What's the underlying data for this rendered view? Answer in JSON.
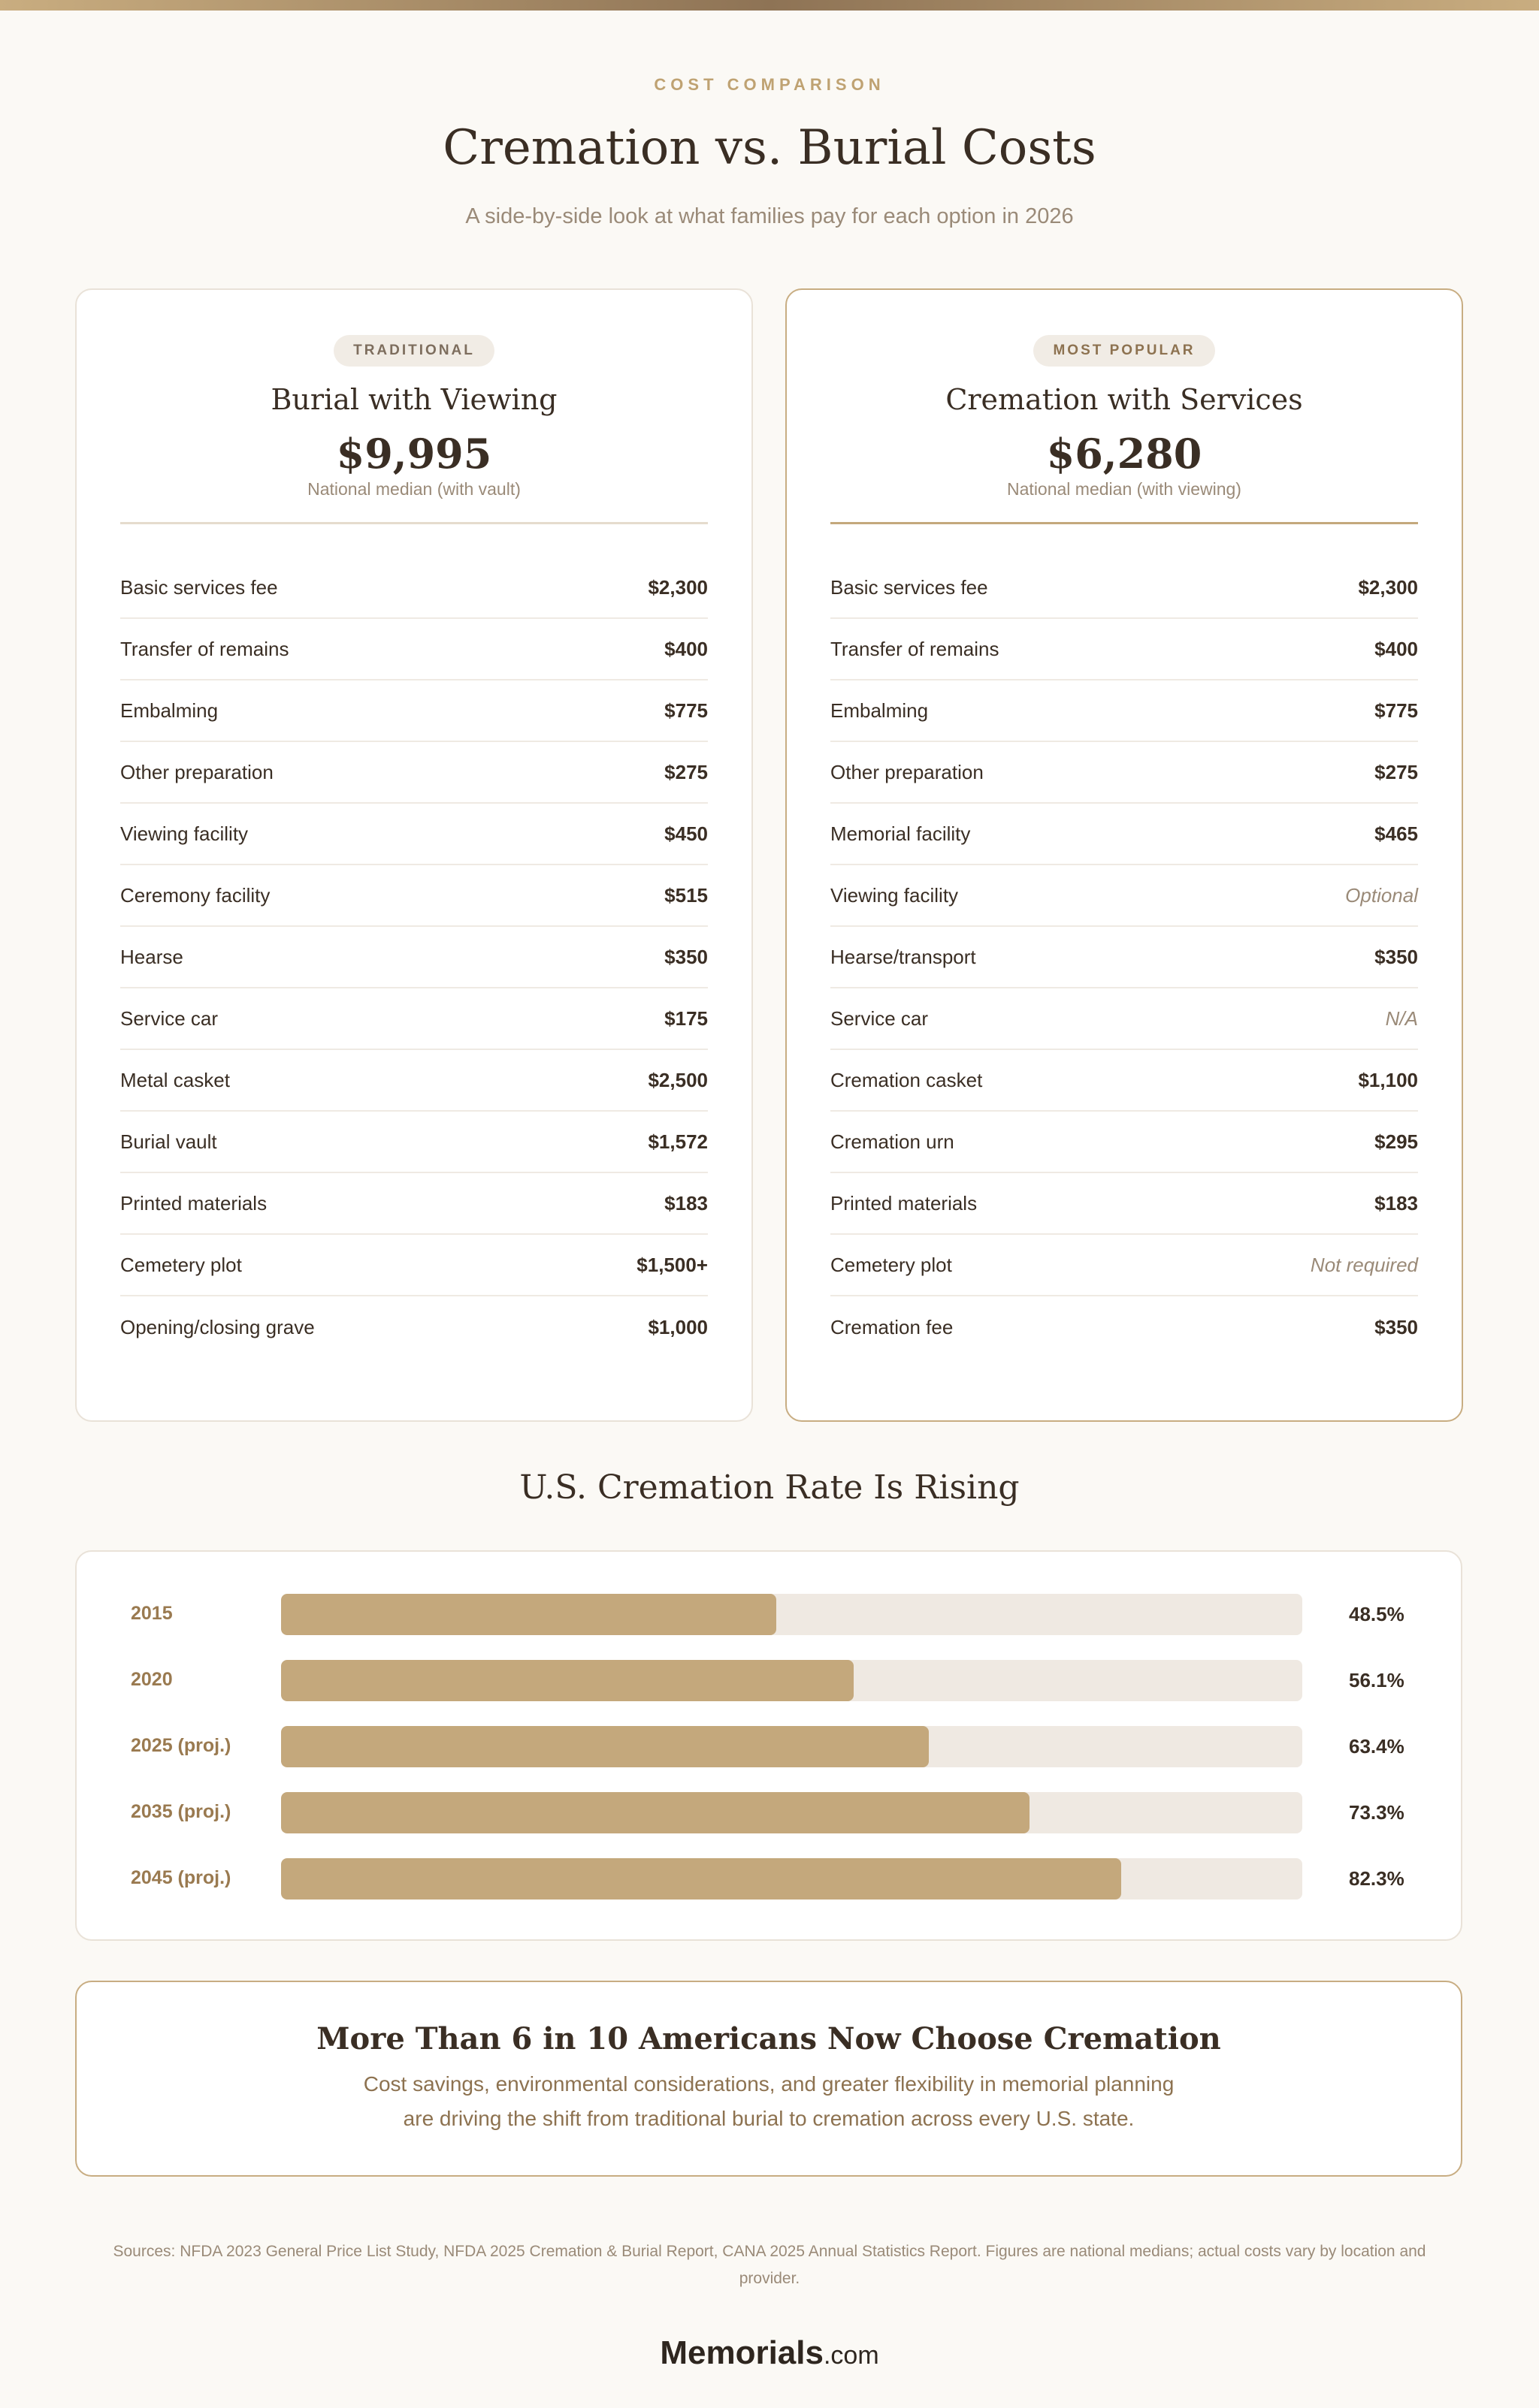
{
  "header": {
    "eyebrow": "COST COMPARISON",
    "title": "Cremation vs. Burial Costs",
    "subtitle": "A side-by-side look at what families pay for each option in 2026"
  },
  "cards": [
    {
      "badge": "TRADITIONAL",
      "title": "Burial with Viewing",
      "price": "$9,995",
      "note": "National median (with vault)",
      "rows": [
        [
          "Basic services fee",
          "$2,300"
        ],
        [
          "Transfer of remains",
          "$400"
        ],
        [
          "Embalming",
          "$775"
        ],
        [
          "Other preparation",
          "$275"
        ],
        [
          "Viewing facility",
          "$450"
        ],
        [
          "Ceremony facility",
          "$515"
        ],
        [
          "Hearse",
          "$350"
        ],
        [
          "Service car",
          "$175"
        ],
        [
          "Metal casket",
          "$2,500"
        ],
        [
          "Burial vault",
          "$1,572"
        ],
        [
          "Printed materials",
          "$183"
        ],
        [
          "Cemetery plot",
          "$1,500+"
        ],
        [
          "Opening/closing grave",
          "$1,000"
        ]
      ]
    },
    {
      "badge": "MOST POPULAR",
      "title": "Cremation with Services",
      "price": "$6,280",
      "note": "National median (with viewing)",
      "rows": [
        [
          "Basic services fee",
          "$2,300"
        ],
        [
          "Transfer of remains",
          "$400"
        ],
        [
          "Embalming",
          "$775"
        ],
        [
          "Other preparation",
          "$275"
        ],
        [
          "Memorial facility",
          "$465"
        ],
        [
          "Viewing facility",
          "Optional"
        ],
        [
          "Hearse/transport",
          "$350"
        ],
        [
          "Service car",
          "N/A"
        ],
        [
          "Cremation casket",
          "$1,100"
        ],
        [
          "Cremation urn",
          "$295"
        ],
        [
          "Printed materials",
          "$183"
        ],
        [
          "Cemetery plot",
          "Not required"
        ],
        [
          "Cremation fee",
          "$350"
        ]
      ]
    }
  ],
  "chart_data": {
    "type": "bar",
    "title": "U.S. Cremation Rate Is Rising",
    "categories": [
      "2015",
      "2020",
      "2025 (proj.)",
      "2035 (proj.)",
      "2045 (proj.)"
    ],
    "values": [
      48.5,
      56.1,
      63.4,
      73.3,
      82.3
    ],
    "labels": [
      "48.5%",
      "56.1%",
      "63.4%",
      "73.3%",
      "82.3%"
    ],
    "ylim": [
      0,
      100
    ],
    "colors": {
      "bar": "#c4a87c",
      "track": "#efe9e2"
    }
  },
  "callout": {
    "title": "More Than 6 in 10 Americans Now Choose Cremation",
    "line1": "Cost savings, environmental considerations, and greater flexibility in memorial planning",
    "line2": "are driving the shift from traditional burial to cremation across every U.S. state."
  },
  "footer": {
    "sources": "Sources: NFDA 2023 General Price List Study, NFDA 2025 Cremation & Burial Report, CANA 2025 Annual Statistics Report. Figures are national medians; actual costs vary by location and provider.",
    "logo": "Memorials",
    "logo_suffix": ".com"
  }
}
